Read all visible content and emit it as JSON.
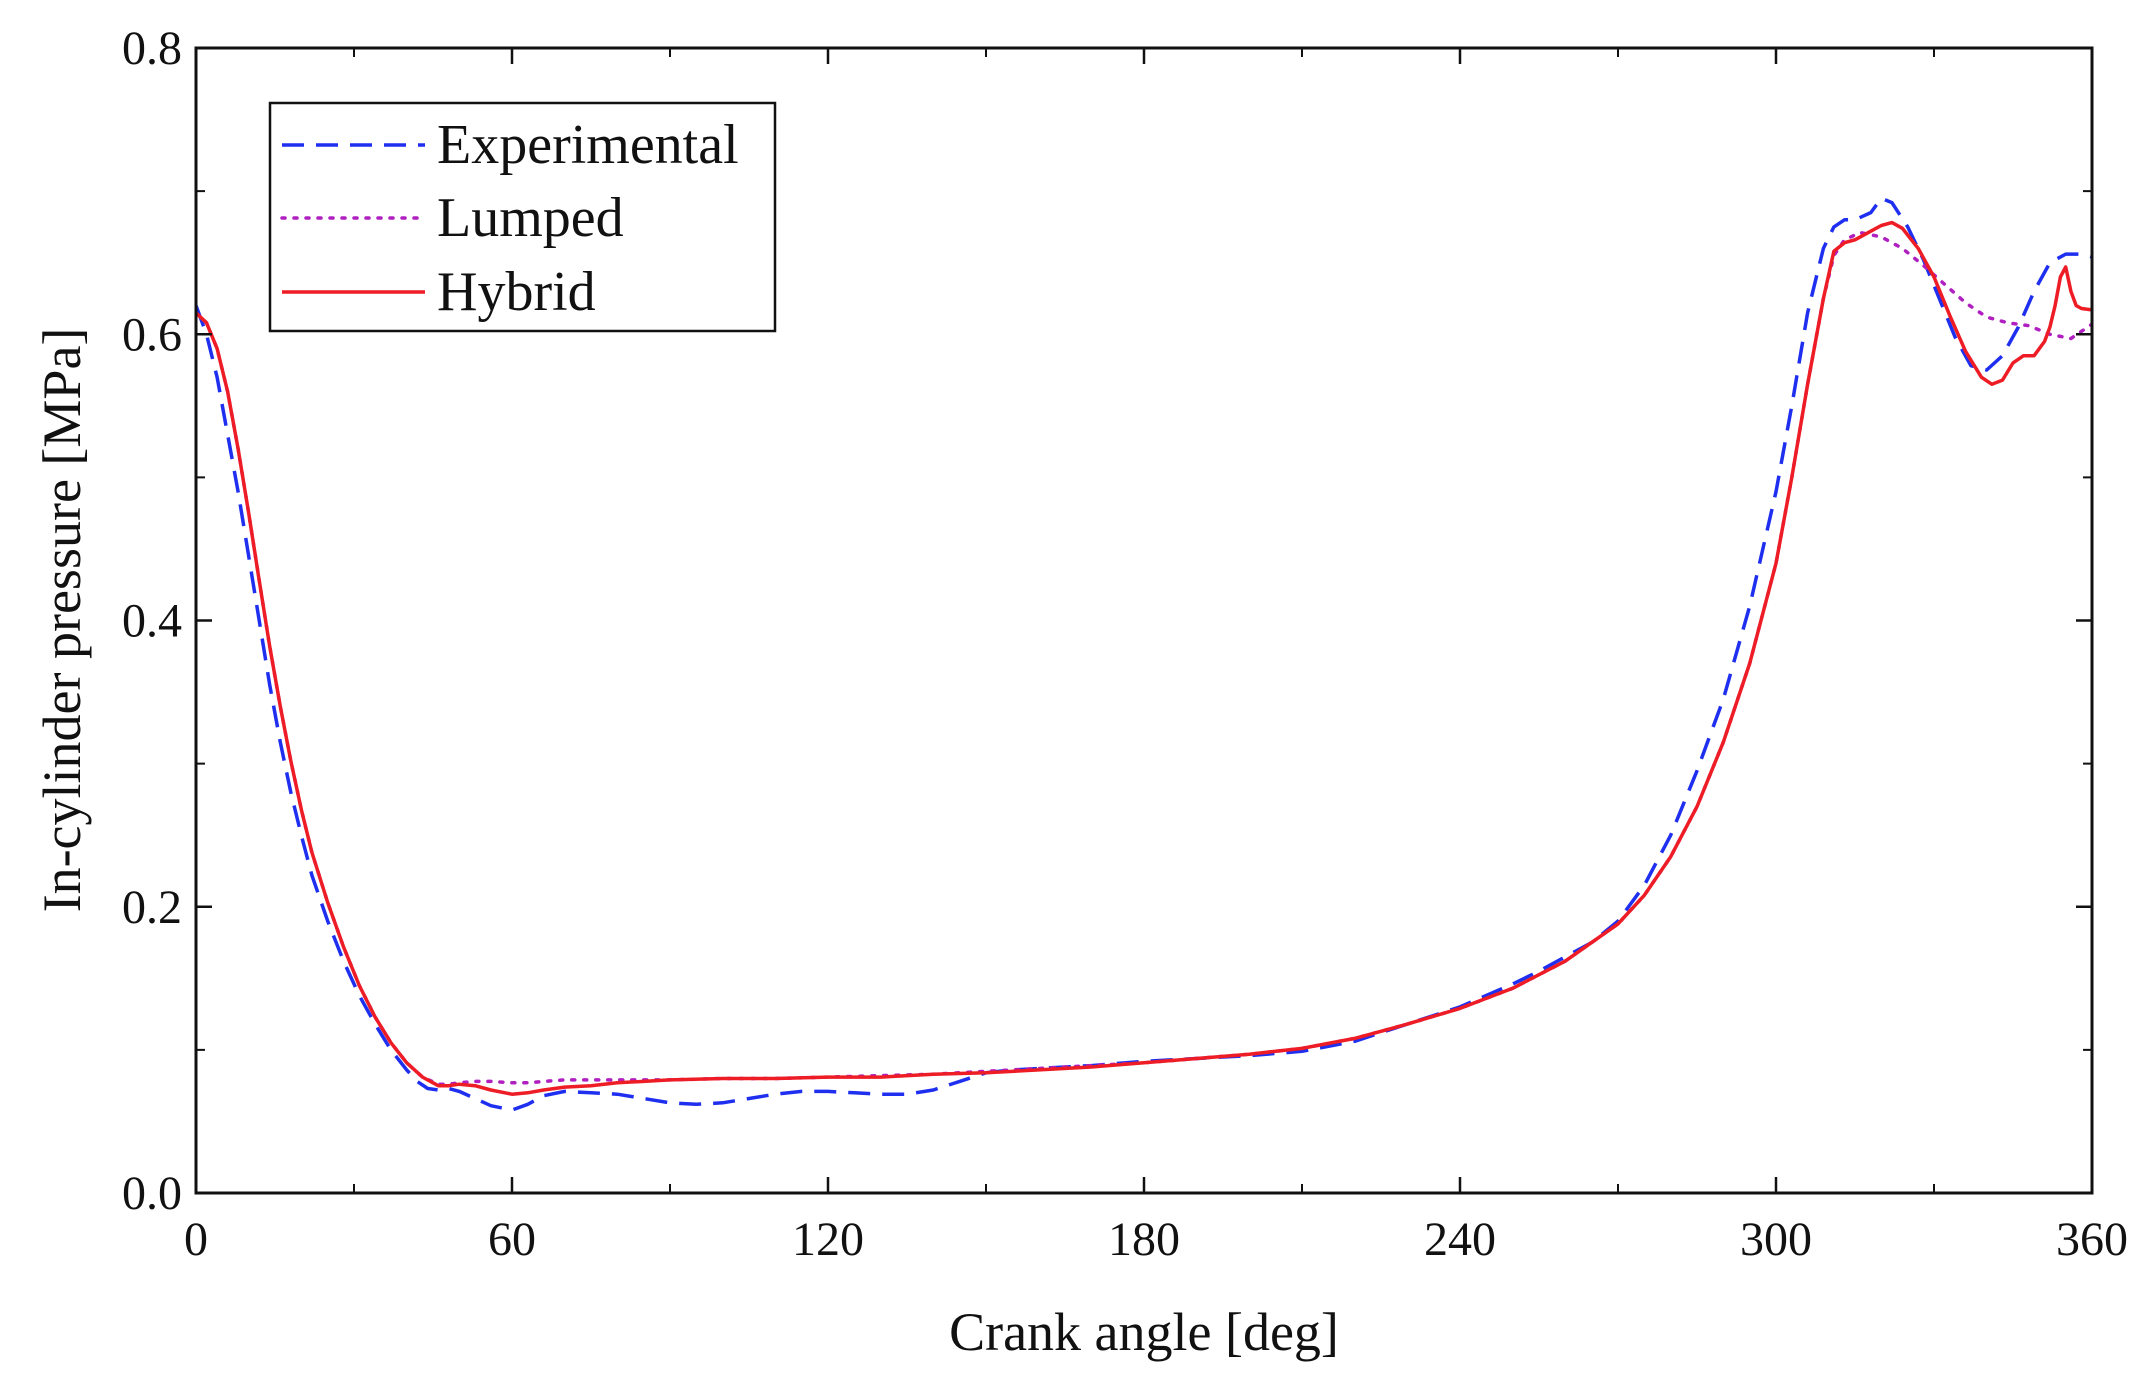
{
  "chart_data": {
    "type": "line",
    "title": "",
    "xlabel": "Crank angle [deg]",
    "ylabel": "In-cylinder pressure [MPa]",
    "xlim": [
      0,
      360
    ],
    "ylim": [
      0,
      0.8
    ],
    "xticks": [
      0,
      60,
      120,
      180,
      240,
      300,
      360
    ],
    "xtick_labels": [
      "0",
      "60",
      "120",
      "180",
      "240",
      "300",
      "360"
    ],
    "yticks": [
      0.0,
      0.2,
      0.4,
      0.6,
      0.8
    ],
    "ytick_labels": [
      "0.0",
      "0.2",
      "0.4",
      "0.6",
      "0.8"
    ],
    "grid": false,
    "legend_position": "top-left",
    "series": [
      {
        "name": "Experimental",
        "color": "#1f2ff0",
        "style": "dashed",
        "x": [
          0,
          2,
          4,
          6,
          8,
          10,
          12,
          14,
          16,
          18,
          20,
          22,
          25,
          28,
          31,
          34,
          37,
          40,
          42,
          44,
          46,
          48,
          50,
          53,
          56,
          60,
          63,
          66,
          70,
          75,
          80,
          85,
          90,
          95,
          100,
          105,
          110,
          115,
          120,
          125,
          130,
          135,
          140,
          145,
          150,
          155,
          160,
          165,
          170,
          180,
          190,
          200,
          210,
          220,
          230,
          240,
          250,
          255,
          260,
          265,
          270,
          275,
          280,
          285,
          290,
          295,
          300,
          303,
          306,
          309,
          311,
          313,
          315,
          318,
          320,
          322,
          325,
          328,
          331,
          334,
          337,
          340,
          343,
          346,
          349,
          352,
          355,
          358,
          360
        ],
        "y": [
          0.62,
          0.6,
          0.57,
          0.53,
          0.49,
          0.445,
          0.4,
          0.355,
          0.315,
          0.28,
          0.25,
          0.222,
          0.19,
          0.162,
          0.138,
          0.118,
          0.1,
          0.086,
          0.078,
          0.073,
          0.072,
          0.073,
          0.071,
          0.066,
          0.061,
          0.058,
          0.062,
          0.068,
          0.071,
          0.07,
          0.069,
          0.066,
          0.063,
          0.062,
          0.063,
          0.066,
          0.069,
          0.071,
          0.071,
          0.07,
          0.069,
          0.069,
          0.072,
          0.078,
          0.084,
          0.086,
          0.087,
          0.088,
          0.089,
          0.092,
          0.094,
          0.096,
          0.099,
          0.106,
          0.118,
          0.13,
          0.146,
          0.155,
          0.165,
          0.175,
          0.19,
          0.215,
          0.25,
          0.295,
          0.345,
          0.41,
          0.49,
          0.55,
          0.615,
          0.66,
          0.675,
          0.68,
          0.68,
          0.685,
          0.695,
          0.692,
          0.675,
          0.652,
          0.625,
          0.598,
          0.578,
          0.575,
          0.585,
          0.605,
          0.63,
          0.65,
          0.656,
          0.656,
          0.654
        ]
      },
      {
        "name": "Lumped",
        "color": "#b020c0",
        "style": "dotted",
        "x": [
          0,
          2,
          4,
          6,
          8,
          10,
          12,
          14,
          16,
          18,
          20,
          22,
          25,
          28,
          31,
          34,
          37,
          40,
          43,
          46,
          48,
          50,
          53,
          56,
          60,
          63,
          66,
          70,
          75,
          80,
          85,
          90,
          100,
          110,
          120,
          130,
          140,
          150,
          160,
          170,
          180,
          190,
          200,
          210,
          220,
          230,
          240,
          250,
          260,
          270,
          275,
          280,
          285,
          290,
          295,
          300,
          303,
          306,
          309,
          311,
          313,
          316,
          320,
          324,
          328,
          332,
          336,
          340,
          344,
          348,
          352,
          356,
          360
        ],
        "y": [
          0.615,
          0.608,
          0.59,
          0.56,
          0.52,
          0.475,
          0.428,
          0.382,
          0.34,
          0.302,
          0.268,
          0.238,
          0.203,
          0.172,
          0.145,
          0.123,
          0.105,
          0.091,
          0.081,
          0.076,
          0.076,
          0.077,
          0.078,
          0.078,
          0.077,
          0.077,
          0.078,
          0.079,
          0.079,
          0.079,
          0.079,
          0.079,
          0.08,
          0.08,
          0.081,
          0.082,
          0.083,
          0.085,
          0.087,
          0.089,
          0.091,
          0.094,
          0.097,
          0.101,
          0.108,
          0.118,
          0.129,
          0.143,
          0.162,
          0.188,
          0.208,
          0.235,
          0.27,
          0.315,
          0.37,
          0.44,
          0.5,
          0.565,
          0.625,
          0.655,
          0.666,
          0.671,
          0.668,
          0.66,
          0.648,
          0.635,
          0.622,
          0.612,
          0.608,
          0.606,
          0.6,
          0.597,
          0.607
        ]
      },
      {
        "name": "Hybrid",
        "color": "#ee1c25",
        "style": "solid",
        "x": [
          0,
          2,
          4,
          6,
          8,
          10,
          12,
          14,
          16,
          18,
          20,
          22,
          25,
          28,
          31,
          34,
          37,
          40,
          43,
          46,
          48,
          50,
          53,
          56,
          60,
          63,
          66,
          70,
          75,
          80,
          85,
          90,
          100,
          110,
          120,
          130,
          140,
          150,
          160,
          170,
          180,
          190,
          200,
          210,
          220,
          230,
          240,
          250,
          260,
          270,
          275,
          280,
          285,
          290,
          295,
          300,
          303,
          306,
          309,
          311,
          313,
          315,
          318,
          320,
          322,
          324,
          327,
          330,
          333,
          336,
          339,
          341,
          343,
          345,
          347,
          349,
          351,
          352,
          353,
          354,
          355,
          356,
          357,
          358,
          360
        ],
        "y": [
          0.615,
          0.608,
          0.59,
          0.56,
          0.52,
          0.475,
          0.428,
          0.382,
          0.34,
          0.302,
          0.268,
          0.238,
          0.203,
          0.172,
          0.145,
          0.123,
          0.105,
          0.091,
          0.081,
          0.075,
          0.075,
          0.076,
          0.075,
          0.072,
          0.069,
          0.07,
          0.072,
          0.074,
          0.075,
          0.077,
          0.078,
          0.079,
          0.08,
          0.08,
          0.081,
          0.081,
          0.083,
          0.084,
          0.086,
          0.088,
          0.091,
          0.094,
          0.097,
          0.101,
          0.108,
          0.118,
          0.129,
          0.143,
          0.162,
          0.188,
          0.208,
          0.235,
          0.27,
          0.315,
          0.37,
          0.44,
          0.5,
          0.565,
          0.625,
          0.658,
          0.664,
          0.666,
          0.672,
          0.676,
          0.678,
          0.674,
          0.66,
          0.64,
          0.613,
          0.588,
          0.57,
          0.565,
          0.568,
          0.58,
          0.585,
          0.585,
          0.595,
          0.605,
          0.62,
          0.64,
          0.647,
          0.63,
          0.62,
          0.618,
          0.617
        ]
      }
    ]
  }
}
